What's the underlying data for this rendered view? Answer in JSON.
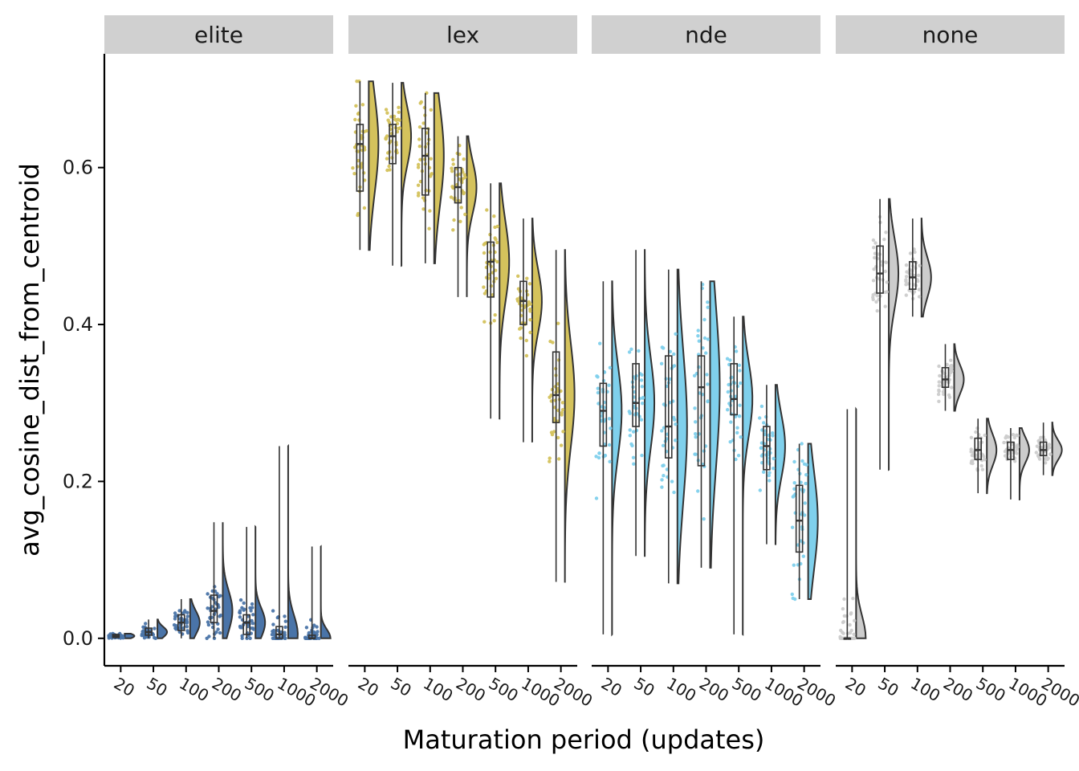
{
  "chart_data": {
    "type": "raincloud",
    "xlabel": "Maturation period (updates)",
    "ylabel": "avg_cosine_dist_from_centroid",
    "ylim": [
      -0.035,
      0.745
    ],
    "yticks": [
      "0.0",
      "0.2",
      "0.4",
      "0.6"
    ],
    "categories": [
      "20",
      "50",
      "100",
      "200",
      "500",
      "1000",
      "2000"
    ],
    "panels": [
      {
        "label": "elite",
        "color": "#4a74a8",
        "groups": [
          {
            "cat": "20",
            "min": 0.0,
            "q1": 0.001,
            "median": 0.003,
            "q3": 0.005,
            "max": 0.006
          },
          {
            "cat": "50",
            "min": 0.0,
            "q1": 0.004,
            "median": 0.008,
            "q3": 0.013,
            "max": 0.024
          },
          {
            "cat": "100",
            "min": 0.0,
            "q1": 0.01,
            "median": 0.02,
            "q3": 0.03,
            "max": 0.05
          },
          {
            "cat": "200",
            "min": 0.0,
            "q1": 0.02,
            "median": 0.035,
            "q3": 0.055,
            "max": 0.148
          },
          {
            "cat": "500",
            "min": 0.0,
            "q1": 0.005,
            "median": 0.02,
            "q3": 0.03,
            "max": 0.142
          },
          {
            "cat": "1000",
            "min": 0.0,
            "q1": 0.0,
            "median": 0.005,
            "q3": 0.015,
            "max": 0.245
          },
          {
            "cat": "2000",
            "min": 0.0,
            "q1": 0.0,
            "median": 0.0,
            "q3": 0.004,
            "max": 0.117
          }
        ]
      },
      {
        "label": "lex",
        "color": "#d4c25c",
        "groups": [
          {
            "cat": "20",
            "min": 0.495,
            "q1": 0.57,
            "median": 0.63,
            "q3": 0.655,
            "max": 0.71
          },
          {
            "cat": "50",
            "min": 0.475,
            "q1": 0.605,
            "median": 0.64,
            "q3": 0.655,
            "max": 0.708
          },
          {
            "cat": "100",
            "min": 0.478,
            "q1": 0.565,
            "median": 0.615,
            "q3": 0.65,
            "max": 0.695
          },
          {
            "cat": "200",
            "min": 0.435,
            "q1": 0.555,
            "median": 0.575,
            "q3": 0.6,
            "max": 0.64
          },
          {
            "cat": "500",
            "min": 0.28,
            "q1": 0.435,
            "median": 0.48,
            "q3": 0.505,
            "max": 0.58
          },
          {
            "cat": "1000",
            "min": 0.25,
            "q1": 0.4,
            "median": 0.43,
            "q3": 0.455,
            "max": 0.535
          },
          {
            "cat": "2000",
            "min": 0.072,
            "q1": 0.275,
            "median": 0.31,
            "q3": 0.365,
            "max": 0.495
          }
        ]
      },
      {
        "label": "nde",
        "color": "#7fd0ec",
        "groups": [
          {
            "cat": "20",
            "min": 0.005,
            "q1": 0.245,
            "median": 0.29,
            "q3": 0.325,
            "max": 0.455
          },
          {
            "cat": "50",
            "min": 0.105,
            "q1": 0.27,
            "median": 0.3,
            "q3": 0.35,
            "max": 0.495
          },
          {
            "cat": "100",
            "min": 0.07,
            "q1": 0.23,
            "median": 0.27,
            "q3": 0.36,
            "max": 0.47
          },
          {
            "cat": "200",
            "min": 0.09,
            "q1": 0.22,
            "median": 0.32,
            "q3": 0.36,
            "max": 0.455
          },
          {
            "cat": "500",
            "min": 0.005,
            "q1": 0.285,
            "median": 0.305,
            "q3": 0.35,
            "max": 0.41
          },
          {
            "cat": "1000",
            "min": 0.12,
            "q1": 0.215,
            "median": 0.245,
            "q3": 0.27,
            "max": 0.323
          },
          {
            "cat": "2000",
            "min": 0.05,
            "q1": 0.11,
            "median": 0.15,
            "q3": 0.195,
            "max": 0.248
          }
        ]
      },
      {
        "label": "none",
        "color": "#cccccc",
        "groups": [
          {
            "cat": "20",
            "min": 0.0,
            "q1": 0.0,
            "median": 0.0,
            "q3": 0.0,
            "max": 0.292
          },
          {
            "cat": "50",
            "min": 0.215,
            "q1": 0.44,
            "median": 0.465,
            "q3": 0.5,
            "max": 0.56
          },
          {
            "cat": "100",
            "min": 0.41,
            "q1": 0.445,
            "median": 0.46,
            "q3": 0.48,
            "max": 0.535
          },
          {
            "cat": "200",
            "min": 0.29,
            "q1": 0.32,
            "median": 0.33,
            "q3": 0.345,
            "max": 0.375
          },
          {
            "cat": "500",
            "min": 0.185,
            "q1": 0.228,
            "median": 0.24,
            "q3": 0.255,
            "max": 0.28
          },
          {
            "cat": "1000",
            "min": 0.177,
            "q1": 0.228,
            "median": 0.24,
            "q3": 0.25,
            "max": 0.268
          },
          {
            "cat": "2000",
            "min": 0.208,
            "q1": 0.233,
            "median": 0.24,
            "q3": 0.25,
            "max": 0.275
          }
        ]
      }
    ]
  }
}
